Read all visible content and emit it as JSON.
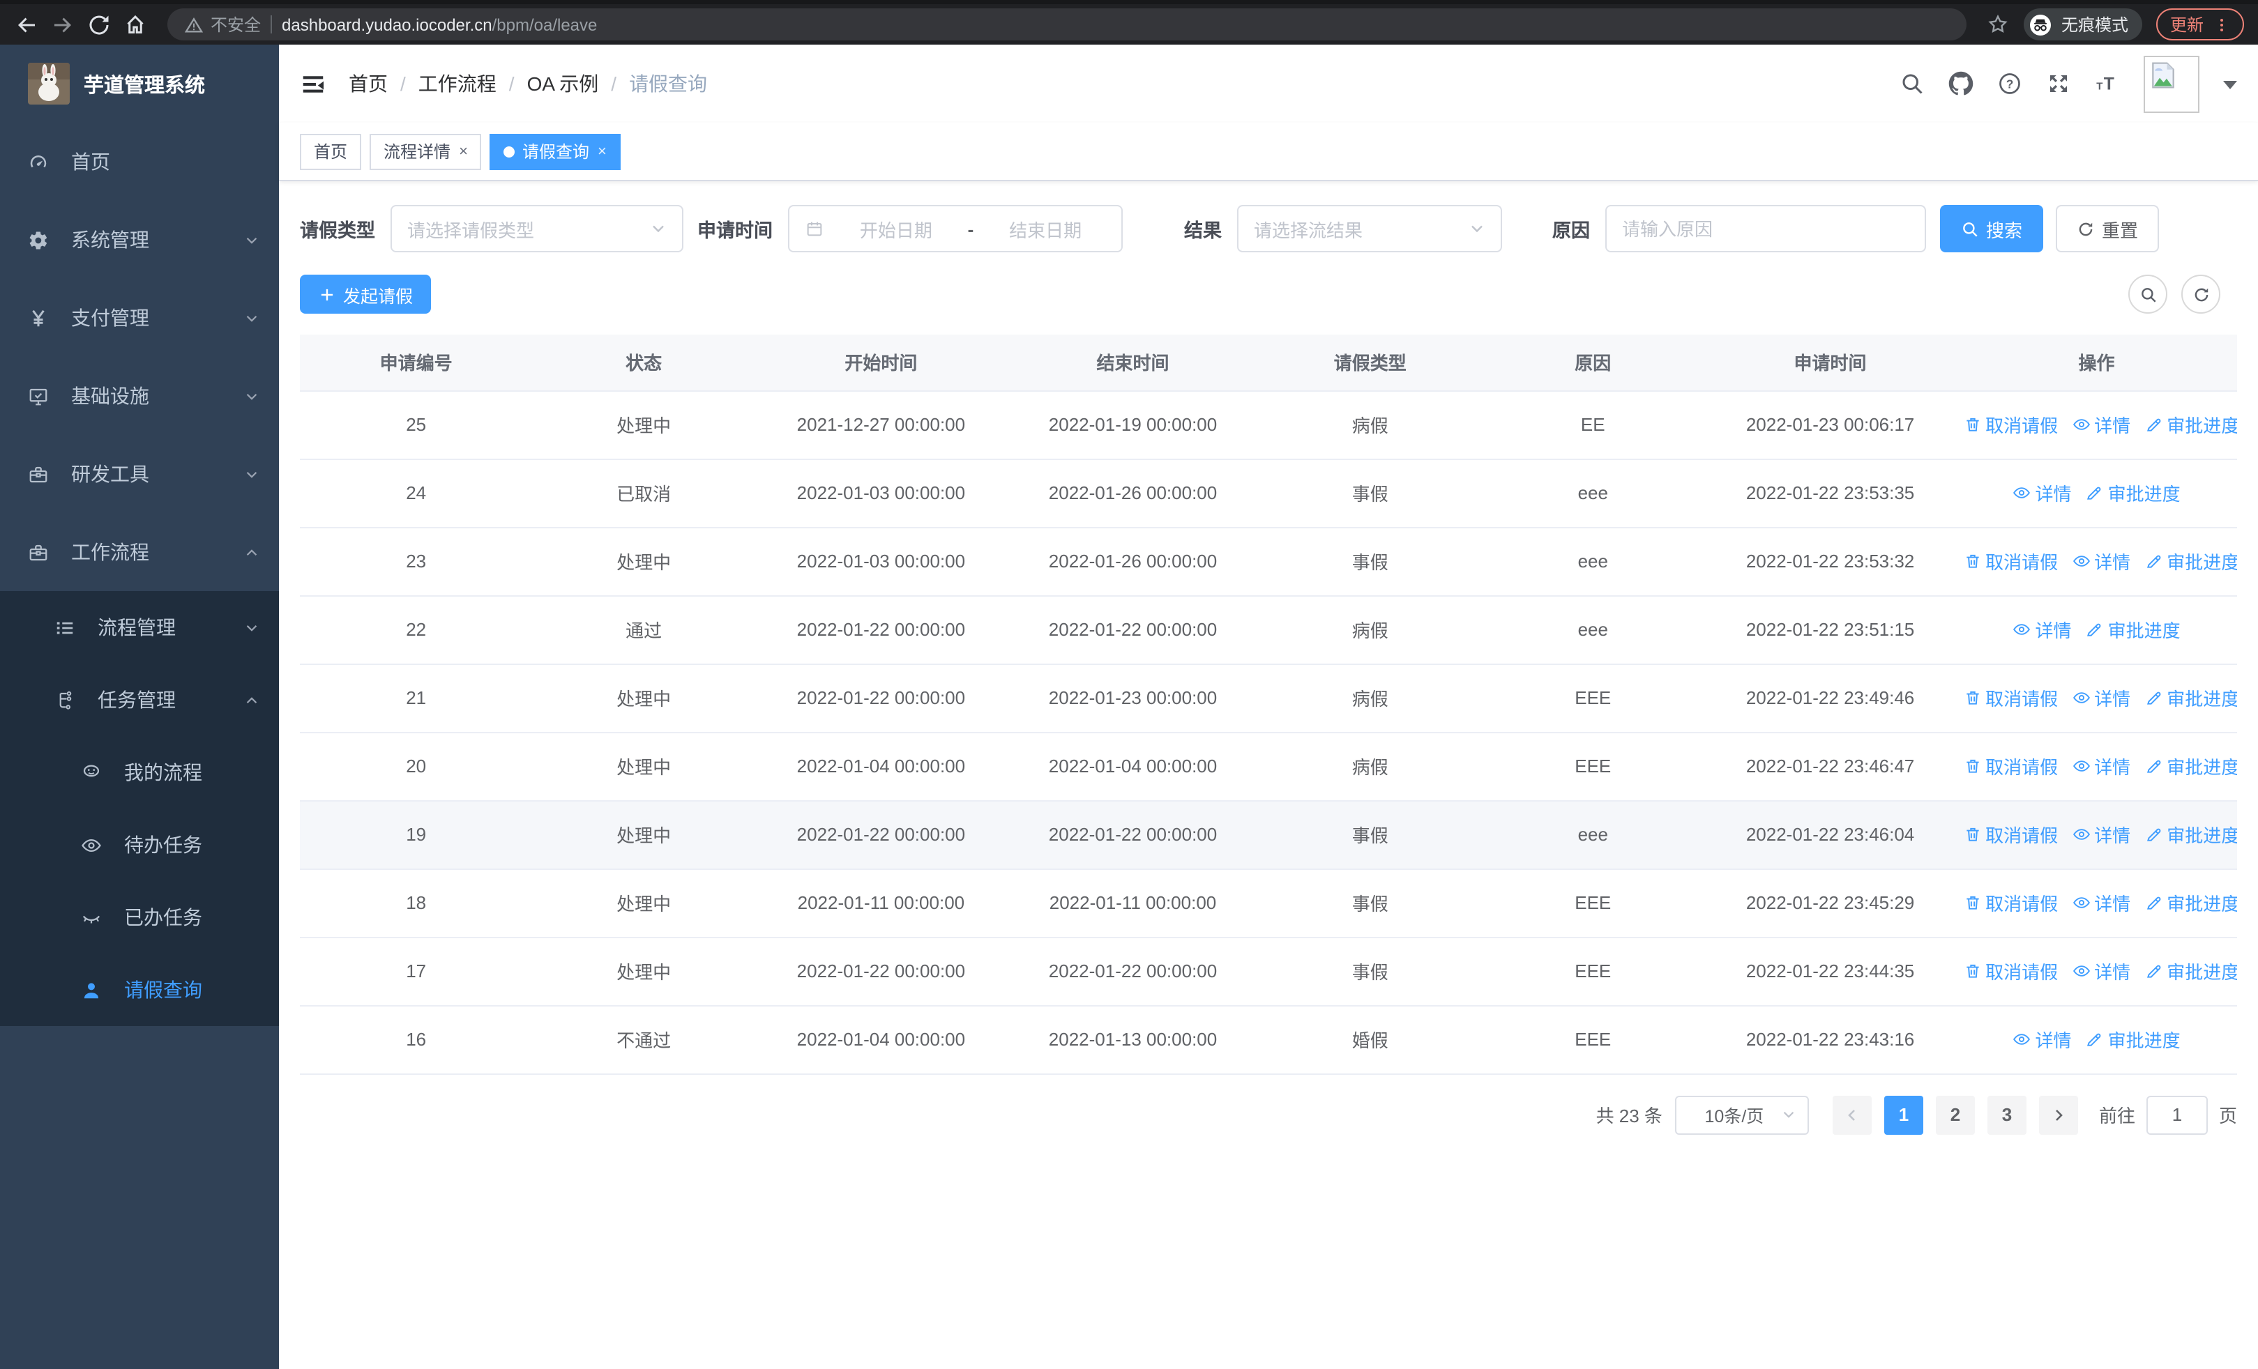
{
  "browser": {
    "security_label": "不安全",
    "url_host": "dashboard.yudao.iocoder.cn",
    "url_path": "/bpm/oa/leave",
    "incognito_label": "无痕模式",
    "update_label": "更新"
  },
  "colors": {
    "accent": "#409eff",
    "sidebar_bg": "#304156",
    "submenu_bg": "#1f2d3d",
    "update_pill": "#ee8277"
  },
  "sidebar": {
    "app_title": "芋道管理系统",
    "items": [
      {
        "label": "首页",
        "icon": "dashboard-icon",
        "level": 1,
        "chevron": null,
        "submenu": false,
        "active": false
      },
      {
        "label": "系统管理",
        "icon": "gear-icon",
        "level": 1,
        "chevron": "down",
        "submenu": false,
        "active": false
      },
      {
        "label": "支付管理",
        "icon": "yen-icon",
        "level": 1,
        "chevron": "down",
        "submenu": false,
        "active": false
      },
      {
        "label": "基础设施",
        "icon": "monitor-icon",
        "level": 1,
        "chevron": "down",
        "submenu": false,
        "active": false
      },
      {
        "label": "研发工具",
        "icon": "toolbox-icon",
        "level": 1,
        "chevron": "down",
        "submenu": false,
        "active": false
      },
      {
        "label": "工作流程",
        "icon": "briefcase-icon",
        "level": 1,
        "chevron": "up",
        "submenu": false,
        "active": false
      },
      {
        "label": "流程管理",
        "icon": "list-tree-icon",
        "level": 2,
        "chevron": "down",
        "submenu": true,
        "active": false
      },
      {
        "label": "任务管理",
        "icon": "flow-icon",
        "level": 2,
        "chevron": "up",
        "submenu": true,
        "active": false
      },
      {
        "label": "我的流程",
        "icon": "robot-icon",
        "level": 3,
        "chevron": null,
        "submenu": true,
        "active": false
      },
      {
        "label": "待办任务",
        "icon": "eye-open-icon",
        "level": 3,
        "chevron": null,
        "submenu": true,
        "active": false
      },
      {
        "label": "已办任务",
        "icon": "eye-closed-icon",
        "level": 3,
        "chevron": null,
        "submenu": true,
        "active": false
      },
      {
        "label": "请假查询",
        "icon": "user-icon",
        "level": 3,
        "chevron": null,
        "submenu": true,
        "active": true
      }
    ]
  },
  "header": {
    "breadcrumb": [
      "首页",
      "工作流程",
      "OA 示例",
      "请假查询"
    ],
    "right_icons": [
      "search-icon",
      "github-icon",
      "help-icon",
      "fullscreen-icon",
      "font-size-icon"
    ]
  },
  "tabs": [
    {
      "label": "首页",
      "closable": false,
      "active": false
    },
    {
      "label": "流程详情",
      "closable": true,
      "active": false
    },
    {
      "label": "请假查询",
      "closable": true,
      "active": true
    }
  ],
  "filters": {
    "type_label": "请假类型",
    "type_placeholder": "请选择请假类型",
    "time_label": "申请时间",
    "time_start_placeholder": "开始日期",
    "time_separator": "-",
    "time_end_placeholder": "结束日期",
    "result_label": "结果",
    "result_placeholder": "请选择流结果",
    "reason_label": "原因",
    "reason_placeholder": "请输入原因",
    "search_label": "搜索",
    "reset_label": "重置"
  },
  "toolbar": {
    "create_label": "发起请假"
  },
  "table": {
    "columns": [
      "申请编号",
      "状态",
      "开始时间",
      "结束时间",
      "请假类型",
      "原因",
      "申请时间",
      "操作"
    ],
    "action_labels": {
      "cancel": "取消请假",
      "detail": "详情",
      "progress": "审批进度"
    },
    "rows": [
      {
        "id": "25",
        "status": "处理中",
        "start": "2021-12-27 00:00:00",
        "end": "2022-01-19 00:00:00",
        "type": "病假",
        "reason": "EE",
        "applied": "2022-01-23 00:06:17",
        "actions": [
          "cancel",
          "detail",
          "progress"
        ],
        "highlight": false
      },
      {
        "id": "24",
        "status": "已取消",
        "start": "2022-01-03 00:00:00",
        "end": "2022-01-26 00:00:00",
        "type": "事假",
        "reason": "eee",
        "applied": "2022-01-22 23:53:35",
        "actions": [
          "detail",
          "progress"
        ],
        "highlight": false
      },
      {
        "id": "23",
        "status": "处理中",
        "start": "2022-01-03 00:00:00",
        "end": "2022-01-26 00:00:00",
        "type": "事假",
        "reason": "eee",
        "applied": "2022-01-22 23:53:32",
        "actions": [
          "cancel",
          "detail",
          "progress"
        ],
        "highlight": false
      },
      {
        "id": "22",
        "status": "通过",
        "start": "2022-01-22 00:00:00",
        "end": "2022-01-22 00:00:00",
        "type": "病假",
        "reason": "eee",
        "applied": "2022-01-22 23:51:15",
        "actions": [
          "detail",
          "progress"
        ],
        "highlight": false
      },
      {
        "id": "21",
        "status": "处理中",
        "start": "2022-01-22 00:00:00",
        "end": "2022-01-23 00:00:00",
        "type": "病假",
        "reason": "EEE",
        "applied": "2022-01-22 23:49:46",
        "actions": [
          "cancel",
          "detail",
          "progress"
        ],
        "highlight": false
      },
      {
        "id": "20",
        "status": "处理中",
        "start": "2022-01-04 00:00:00",
        "end": "2022-01-04 00:00:00",
        "type": "病假",
        "reason": "EEE",
        "applied": "2022-01-22 23:46:47",
        "actions": [
          "cancel",
          "detail",
          "progress"
        ],
        "highlight": false
      },
      {
        "id": "19",
        "status": "处理中",
        "start": "2022-01-22 00:00:00",
        "end": "2022-01-22 00:00:00",
        "type": "事假",
        "reason": "eee",
        "applied": "2022-01-22 23:46:04",
        "actions": [
          "cancel",
          "detail",
          "progress"
        ],
        "highlight": true
      },
      {
        "id": "18",
        "status": "处理中",
        "start": "2022-01-11 00:00:00",
        "end": "2022-01-11 00:00:00",
        "type": "事假",
        "reason": "EEE",
        "applied": "2022-01-22 23:45:29",
        "actions": [
          "cancel",
          "detail",
          "progress"
        ],
        "highlight": false
      },
      {
        "id": "17",
        "status": "处理中",
        "start": "2022-01-22 00:00:00",
        "end": "2022-01-22 00:00:00",
        "type": "事假",
        "reason": "EEE",
        "applied": "2022-01-22 23:44:35",
        "actions": [
          "cancel",
          "detail",
          "progress"
        ],
        "highlight": false
      },
      {
        "id": "16",
        "status": "不通过",
        "start": "2022-01-04 00:00:00",
        "end": "2022-01-13 00:00:00",
        "type": "婚假",
        "reason": "EEE",
        "applied": "2022-01-22 23:43:16",
        "actions": [
          "detail",
          "progress"
        ],
        "highlight": false
      }
    ]
  },
  "pagination": {
    "total_label": "共 23 条",
    "page_size_label": "10条/页",
    "pages": [
      "1",
      "2",
      "3"
    ],
    "active_page": "1",
    "goto_label": "前往",
    "goto_value": "1",
    "page_unit_label": "页"
  }
}
